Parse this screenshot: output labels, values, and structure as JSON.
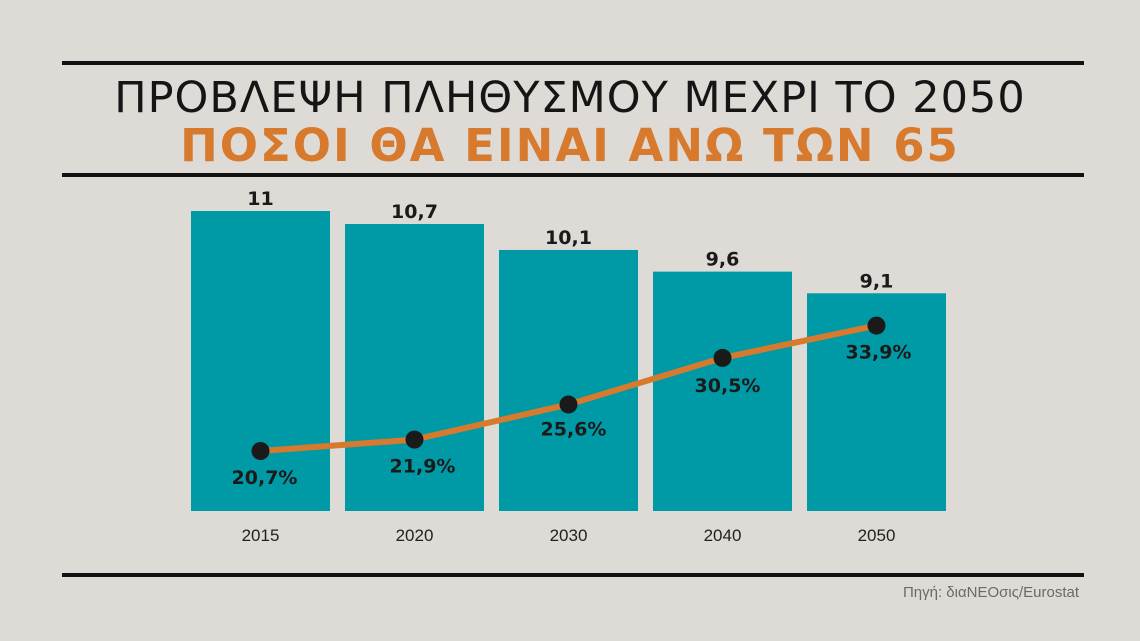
{
  "title": "ΠΡΟΒΛΕΨΗ ΠΛΗΘΥΣΜΟΥ ΜΕΧΡΙ ΤΟ 2050",
  "subtitle": "ΠΟΣΟΙ ΘΑ ΕΙΝΑΙ ΑΝΩ ΤΩΝ 65",
  "source": "Πηγή: διαΝΕΟσις/Eurostat",
  "colors": {
    "background": "#dedad6",
    "bar": "#0099a6",
    "line": "#d87a2d",
    "marker": "#1a1a1a",
    "accent_text": "#d87a2d"
  },
  "chart_data": {
    "type": "bar",
    "categories": [
      "2015",
      "2020",
      "2030",
      "2040",
      "2050"
    ],
    "series": [
      {
        "type": "bar",
        "values": [
          11,
          10.7,
          10.1,
          9.6,
          9.1
        ],
        "labels": [
          "11",
          "10,7",
          "10,1",
          "9,6",
          "9,1"
        ]
      },
      {
        "type": "line",
        "values": [
          20.7,
          21.9,
          25.6,
          30.5,
          33.9
        ],
        "labels": [
          "20,7%",
          "21,9%",
          "25,6%",
          "30,5%",
          "33,9%"
        ]
      }
    ],
    "grid": false,
    "legend": "none"
  }
}
